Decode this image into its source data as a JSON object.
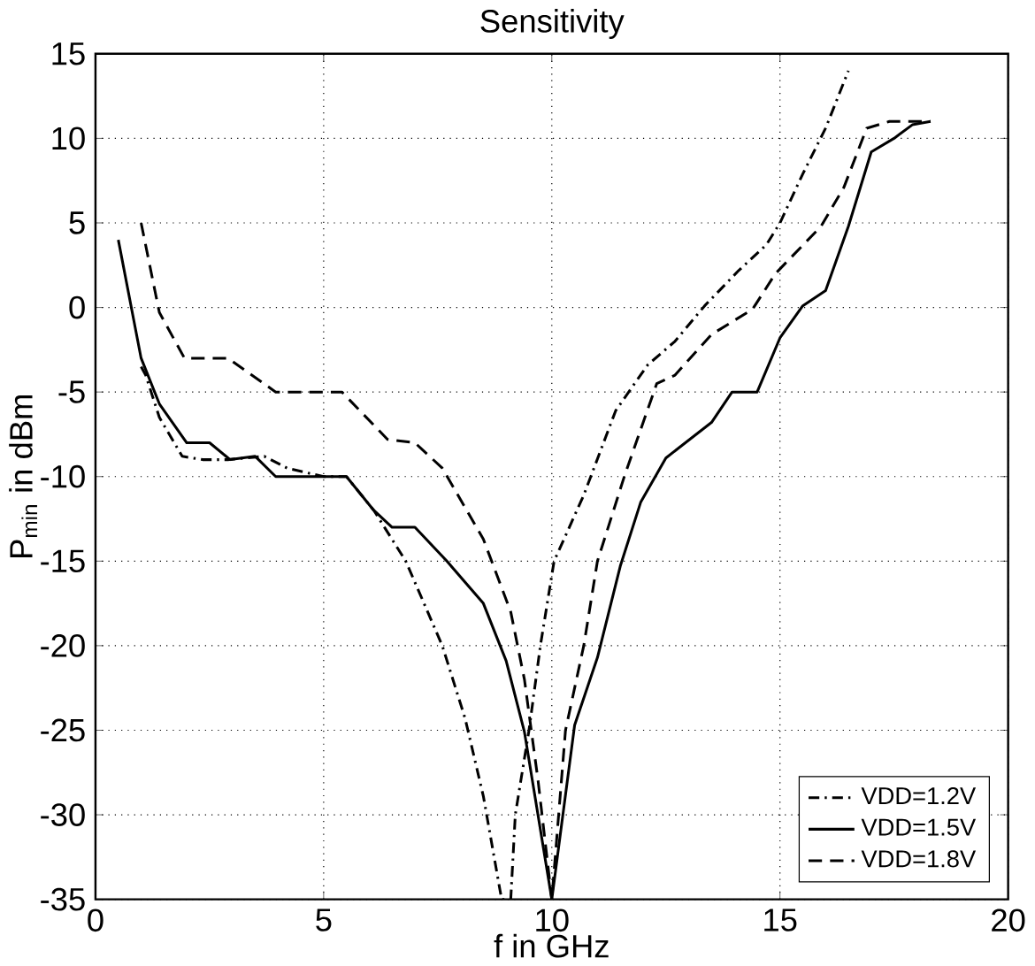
{
  "chart_data": {
    "type": "line",
    "title": "Sensitivity",
    "xlabel": "f in GHz",
    "ylabel": "P$_{min}$ in dBm",
    "xlim": [
      0,
      20
    ],
    "ylim": [
      -35,
      15
    ],
    "xticks": [
      0,
      5,
      10,
      15,
      20
    ],
    "yticks": [
      -35,
      -30,
      -25,
      -20,
      -15,
      -10,
      -5,
      0,
      5,
      10,
      15
    ],
    "grid": true,
    "legend": "bottom right",
    "marker": "none",
    "series": [
      {
        "name": "VDD=1.2V",
        "color": "#000000",
        "line_style": "dashdot",
        "x": [
          1.0,
          1.1,
          1.4,
          1.9,
          2.35,
          2.9,
          3.7,
          4.2,
          5.0,
          5.5,
          6.1,
          6.8,
          7.6,
          8.1,
          8.5,
          8.9,
          9.1,
          9.2,
          9.5,
          9.75,
          10.05,
          10.7,
          11.4,
          12.1,
          12.7,
          13.35,
          14.1,
          14.7,
          15.0,
          15.5,
          16.0,
          16.5
        ],
        "values": [
          -3.5,
          -4,
          -6.5,
          -8.8,
          -9,
          -9,
          -8.8,
          -9.5,
          -10,
          -10,
          -12,
          -15,
          -20,
          -24.3,
          -28.9,
          -35,
          -35,
          -30,
          -25,
          -20,
          -15,
          -11.1,
          -6.1,
          -3.4,
          -2,
          0.1,
          2.2,
          3.7,
          5,
          7.9,
          10.6,
          14
        ]
      },
      {
        "name": "VDD=1.5V",
        "color": "#000000",
        "line_style": "solid",
        "x": [
          0.5,
          1.0,
          1.4,
          2.0,
          2.5,
          2.95,
          3.5,
          3.95,
          5.5,
          6.1,
          6.5,
          7.0,
          7.7,
          8.5,
          9.0,
          9.4,
          10.0,
          10.5,
          11.0,
          11.5,
          11.95,
          12.5,
          13.5,
          13.95,
          14.5,
          15.0,
          15.5,
          16.0,
          16.5,
          17.0,
          17.5,
          17.9,
          18.3
        ],
        "values": [
          4,
          -3,
          -5.7,
          -8,
          -8,
          -9,
          -8.8,
          -10,
          -10,
          -12,
          -13,
          -13,
          -15,
          -17.5,
          -20.9,
          -25.1,
          -35,
          -24.7,
          -20.7,
          -15.3,
          -11.5,
          -8.9,
          -6.8,
          -5,
          -5,
          -1.8,
          0.1,
          1,
          4.8,
          9.2,
          10,
          10.8,
          11
        ]
      },
      {
        "name": "VDD=1.8V",
        "color": "#000000",
        "line_style": "dashed",
        "x": [
          1.0,
          1.4,
          1.95,
          2.9,
          3.95,
          5.4,
          6.4,
          7.0,
          7.6,
          8.5,
          9.1,
          9.4,
          9.7,
          10.0,
          10.3,
          10.7,
          11.0,
          11.6,
          12.3,
          12.7,
          13.5,
          14.4,
          14.9,
          15.9,
          16.4,
          16.9,
          17.4,
          18.3
        ],
        "values": [
          5,
          -0.3,
          -3,
          -3,
          -5,
          -5,
          -7.8,
          -8,
          -9.5,
          -13.7,
          -18,
          -22,
          -28,
          -35,
          -25,
          -20,
          -15,
          -9.9,
          -4.5,
          -4,
          -1.6,
          -0.1,
          2,
          4.8,
          7.1,
          10.6,
          11,
          11
        ]
      }
    ]
  }
}
